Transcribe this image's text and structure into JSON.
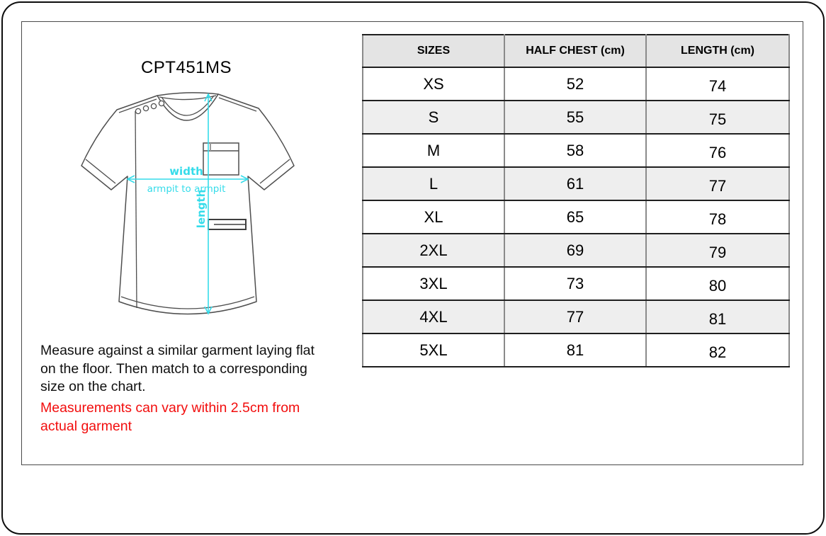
{
  "page": {
    "product_code": "CPT451MS"
  },
  "diagram": {
    "labels": {
      "width": "width",
      "armpit_to_armpit": "armpit to armpit",
      "length": "length"
    },
    "accent_color": "#35dcea"
  },
  "notes": {
    "measure_lines": [
      "Measure against a similar garment laying flat",
      "on the floor. Then match to a corresponding",
      "size on the chart."
    ],
    "disclaimer_lines": [
      "Measurements can vary within 2.5cm from",
      "actual garment"
    ],
    "disclaimer_color": "#f20d0d"
  },
  "table": {
    "headers": [
      "SIZES",
      "HALF CHEST (cm)",
      "LENGTH (cm)"
    ],
    "header_bg": "#e4e4e4",
    "alt_row_bg": "#eeeeee",
    "rows": [
      {
        "size": "XS",
        "half_chest": "52",
        "length": "74"
      },
      {
        "size": "S",
        "half_chest": "55",
        "length": "75"
      },
      {
        "size": "M",
        "half_chest": "58",
        "length": "76"
      },
      {
        "size": "L",
        "half_chest": "61",
        "length": "77"
      },
      {
        "size": "XL",
        "half_chest": "65",
        "length": "78"
      },
      {
        "size": "2XL",
        "half_chest": "69",
        "length": "79"
      },
      {
        "size": "3XL",
        "half_chest": "73",
        "length": "80"
      },
      {
        "size": "4XL",
        "half_chest": "77",
        "length": "81"
      },
      {
        "size": "5XL",
        "half_chest": "81",
        "length": "82"
      }
    ]
  }
}
